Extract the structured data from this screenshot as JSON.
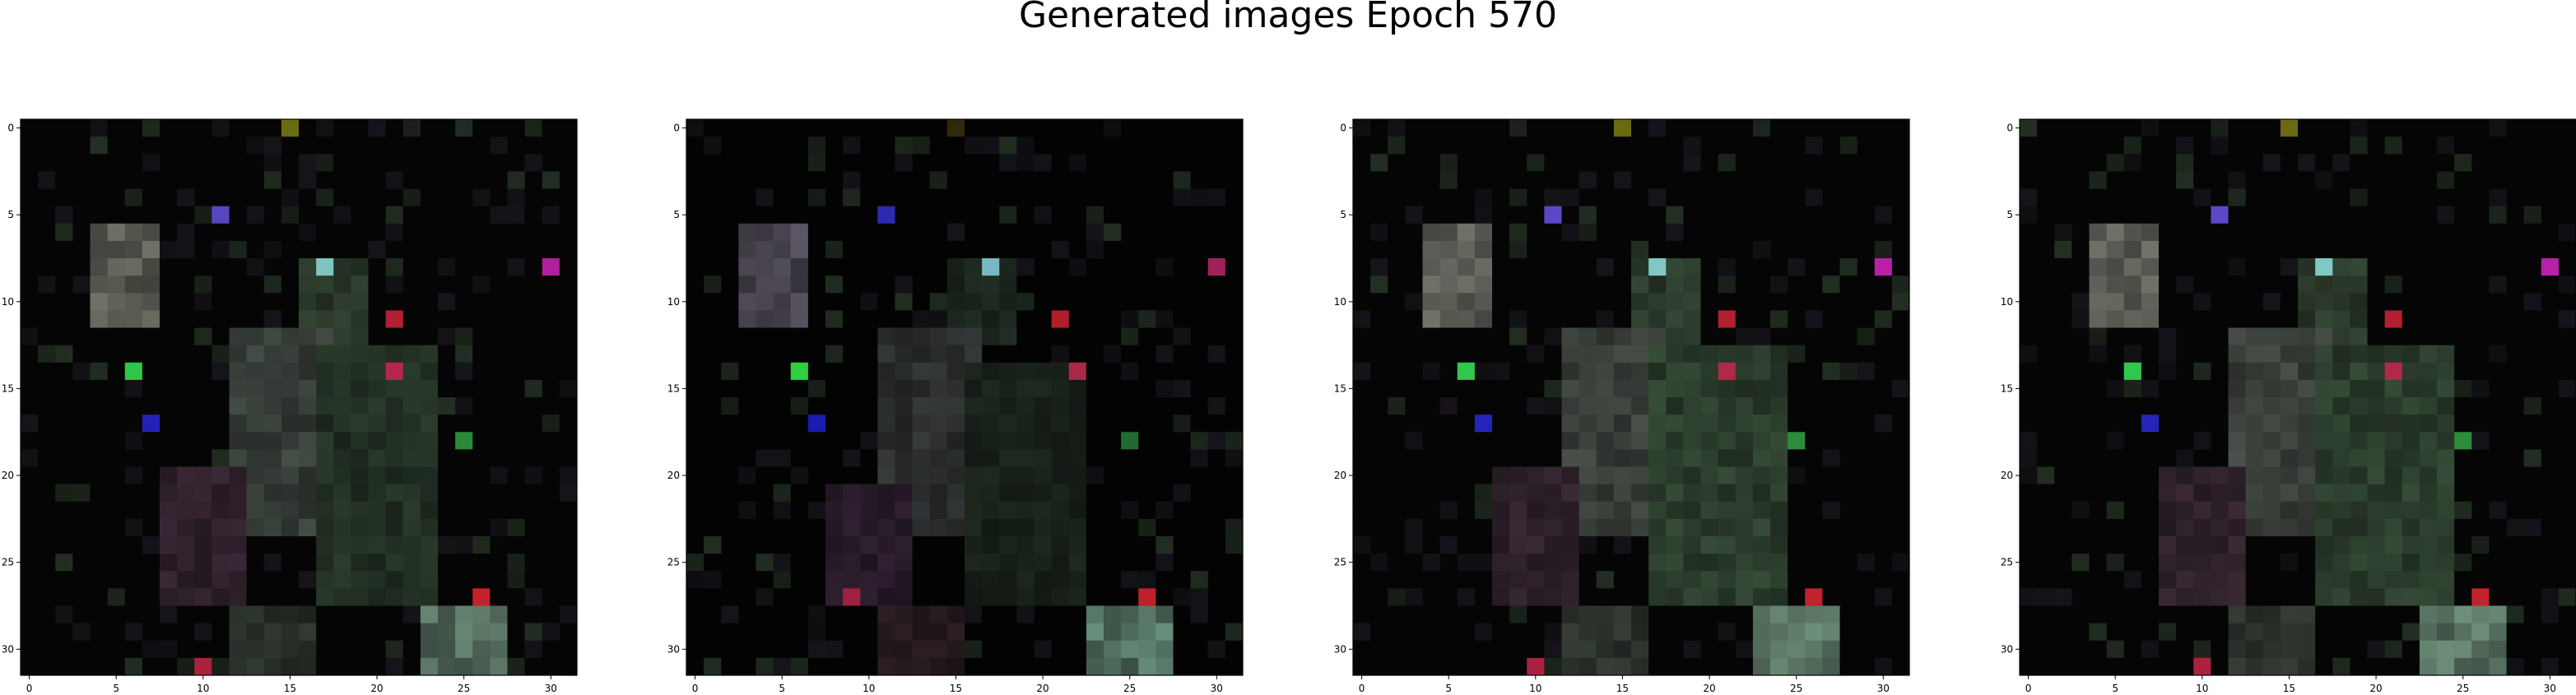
{
  "figure": {
    "title": "Generated images Epoch 570",
    "background_color": "#ffffff",
    "frame_color": "#000000",
    "tick_color": "#000000"
  },
  "chart_data": [
    {
      "type": "heatmap",
      "title": "",
      "xlabel": "",
      "ylabel": "",
      "xlim": [
        -0.5,
        31.5
      ],
      "ylim": [
        31.5,
        -0.5
      ],
      "grid": false,
      "legend": "none",
      "xticks": [
        "0",
        "5",
        "10",
        "15",
        "20",
        "25",
        "30"
      ],
      "yticks": [
        "0",
        "5",
        "10",
        "15",
        "20",
        "25",
        "30"
      ],
      "background": "#050505",
      "regions": [
        {
          "x": [
            4,
            7
          ],
          "y": [
            6,
            11
          ],
          "color": "#8a8f80",
          "alpha": 0.8
        },
        {
          "x": [
            16,
            19
          ],
          "y": [
            8,
            12
          ],
          "color": "#4e6a4e",
          "alpha": 0.65
        },
        {
          "x": [
            12,
            17
          ],
          "y": [
            12,
            23
          ],
          "color": "#5f6c62",
          "alpha": 0.7
        },
        {
          "x": [
            17,
            23
          ],
          "y": [
            13,
            27
          ],
          "color": "#3f5a42",
          "alpha": 0.65
        },
        {
          "x": [
            8,
            12
          ],
          "y": [
            20,
            27
          ],
          "color": "#5c3f55",
          "alpha": 0.6
        },
        {
          "x": [
            12,
            16
          ],
          "y": [
            28,
            31
          ],
          "color": "#4f5e4f",
          "alpha": 0.6
        },
        {
          "x": [
            23,
            27
          ],
          "y": [
            28,
            31
          ],
          "color": "#7da08a",
          "alpha": 0.85
        }
      ],
      "highlights": [
        {
          "x": 15,
          "y": 0,
          "color": "#6b6b14"
        },
        {
          "x": 11,
          "y": 5,
          "color": "#5547c2"
        },
        {
          "x": 30,
          "y": 8,
          "color": "#b0209a"
        },
        {
          "x": 17,
          "y": 8,
          "color": "#7fc4c0"
        },
        {
          "x": 21,
          "y": 11,
          "color": "#b21f32"
        },
        {
          "x": 6,
          "y": 14,
          "color": "#2fc74b"
        },
        {
          "x": 7,
          "y": 17,
          "color": "#2222b8"
        },
        {
          "x": 21,
          "y": 14,
          "color": "#b3284a"
        },
        {
          "x": 25,
          "y": 18,
          "color": "#2b8a3a"
        },
        {
          "x": 26,
          "y": 27,
          "color": "#c1222c"
        },
        {
          "x": 10,
          "y": 31,
          "color": "#aa2240"
        }
      ]
    },
    {
      "type": "heatmap",
      "title": "",
      "xlabel": "",
      "ylabel": "",
      "xlim": [
        -0.5,
        31.5
      ],
      "ylim": [
        31.5,
        -0.5
      ],
      "grid": false,
      "legend": "none",
      "xticks": [
        "0",
        "5",
        "10",
        "15",
        "20",
        "25",
        "30"
      ],
      "yticks": [
        "0",
        "5",
        "10",
        "15",
        "20",
        "25",
        "30"
      ],
      "background": "#030303",
      "regions": [
        {
          "x": [
            3,
            6
          ],
          "y": [
            6,
            11
          ],
          "color": "#7d7488",
          "alpha": 0.75
        },
        {
          "x": [
            15,
            18
          ],
          "y": [
            8,
            12
          ],
          "color": "#354a3a",
          "alpha": 0.6
        },
        {
          "x": [
            11,
            16
          ],
          "y": [
            12,
            23
          ],
          "color": "#5a5f5f",
          "alpha": 0.6
        },
        {
          "x": [
            16,
            22
          ],
          "y": [
            14,
            27
          ],
          "color": "#334736",
          "alpha": 0.55
        },
        {
          "x": [
            8,
            12
          ],
          "y": [
            21,
            27
          ],
          "color": "#56395a",
          "alpha": 0.55
        },
        {
          "x": [
            11,
            15
          ],
          "y": [
            28,
            31
          ],
          "color": "#523846",
          "alpha": 0.55
        },
        {
          "x": [
            23,
            27
          ],
          "y": [
            28,
            31
          ],
          "color": "#79a690",
          "alpha": 0.85
        }
      ],
      "highlights": [
        {
          "x": 15,
          "y": 0,
          "color": "#2f2a0a"
        },
        {
          "x": 11,
          "y": 5,
          "color": "#2c2ab0"
        },
        {
          "x": 30,
          "y": 8,
          "color": "#a0205c"
        },
        {
          "x": 17,
          "y": 8,
          "color": "#78b8c4"
        },
        {
          "x": 21,
          "y": 11,
          "color": "#b01e2a"
        },
        {
          "x": 6,
          "y": 14,
          "color": "#2fd040"
        },
        {
          "x": 7,
          "y": 17,
          "color": "#1c1cb0"
        },
        {
          "x": 22,
          "y": 14,
          "color": "#a82a48"
        },
        {
          "x": 25,
          "y": 18,
          "color": "#226a30"
        },
        {
          "x": 26,
          "y": 27,
          "color": "#c0202a"
        },
        {
          "x": 9,
          "y": 27,
          "color": "#a02040"
        }
      ]
    },
    {
      "type": "heatmap",
      "title": "",
      "xlabel": "",
      "ylabel": "",
      "xlim": [
        -0.5,
        31.5
      ],
      "ylim": [
        31.5,
        -0.5
      ],
      "grid": false,
      "legend": "none",
      "xticks": [
        "0",
        "5",
        "10",
        "15",
        "20",
        "25",
        "30"
      ],
      "yticks": [
        "0",
        "5",
        "10",
        "15",
        "20",
        "25",
        "30"
      ],
      "background": "#050505",
      "regions": [
        {
          "x": [
            4,
            7
          ],
          "y": [
            6,
            11
          ],
          "color": "#8b8d82",
          "alpha": 0.8
        },
        {
          "x": [
            16,
            19
          ],
          "y": [
            8,
            12
          ],
          "color": "#4d6b4f",
          "alpha": 0.65
        },
        {
          "x": [
            12,
            17
          ],
          "y": [
            12,
            23
          ],
          "color": "#636e64",
          "alpha": 0.72
        },
        {
          "x": [
            17,
            24
          ],
          "y": [
            13,
            27
          ],
          "color": "#4a6a4c",
          "alpha": 0.7
        },
        {
          "x": [
            8,
            12
          ],
          "y": [
            20,
            27
          ],
          "color": "#5e4256",
          "alpha": 0.6
        },
        {
          "x": [
            12,
            16
          ],
          "y": [
            28,
            31
          ],
          "color": "#556355",
          "alpha": 0.6
        },
        {
          "x": [
            23,
            27
          ],
          "y": [
            28,
            31
          ],
          "color": "#7fa68d",
          "alpha": 0.85
        }
      ],
      "highlights": [
        {
          "x": 15,
          "y": 0,
          "color": "#6a6a14"
        },
        {
          "x": 11,
          "y": 5,
          "color": "#5a48c8"
        },
        {
          "x": 30,
          "y": 8,
          "color": "#b820a8"
        },
        {
          "x": 17,
          "y": 8,
          "color": "#80c8c4"
        },
        {
          "x": 21,
          "y": 11,
          "color": "#b21f30"
        },
        {
          "x": 6,
          "y": 14,
          "color": "#30c84c"
        },
        {
          "x": 7,
          "y": 17,
          "color": "#2424b8"
        },
        {
          "x": 21,
          "y": 14,
          "color": "#b0284a"
        },
        {
          "x": 25,
          "y": 18,
          "color": "#2c8c3c"
        },
        {
          "x": 26,
          "y": 27,
          "color": "#c2222c"
        },
        {
          "x": 10,
          "y": 31,
          "color": "#aa2240"
        }
      ]
    },
    {
      "type": "heatmap",
      "title": "",
      "xlabel": "",
      "ylabel": "",
      "xlim": [
        -0.5,
        31.5
      ],
      "ylim": [
        31.5,
        -0.5
      ],
      "grid": false,
      "legend": "none",
      "xticks": [
        "0",
        "5",
        "10",
        "15",
        "20",
        "25",
        "30"
      ],
      "yticks": [
        "0",
        "5",
        "10",
        "15",
        "20",
        "25",
        "30"
      ],
      "background": "#050505",
      "regions": [
        {
          "x": [
            4,
            7
          ],
          "y": [
            6,
            11
          ],
          "color": "#8c8f84",
          "alpha": 0.8
        },
        {
          "x": [
            16,
            19
          ],
          "y": [
            8,
            12
          ],
          "color": "#4f6b4f",
          "alpha": 0.65
        },
        {
          "x": [
            12,
            17
          ],
          "y": [
            12,
            23
          ],
          "color": "#656f65",
          "alpha": 0.72
        },
        {
          "x": [
            17,
            24
          ],
          "y": [
            13,
            27
          ],
          "color": "#4b6b4d",
          "alpha": 0.7
        },
        {
          "x": [
            8,
            12
          ],
          "y": [
            20,
            27
          ],
          "color": "#5f4357",
          "alpha": 0.6
        },
        {
          "x": [
            12,
            16
          ],
          "y": [
            28,
            31
          ],
          "color": "#566456",
          "alpha": 0.6
        },
        {
          "x": [
            23,
            27
          ],
          "y": [
            28,
            31
          ],
          "color": "#80a78e",
          "alpha": 0.85
        }
      ],
      "highlights": [
        {
          "x": 15,
          "y": 0,
          "color": "#6a6a14"
        },
        {
          "x": 11,
          "y": 5,
          "color": "#5a48c8"
        },
        {
          "x": 30,
          "y": 8,
          "color": "#b820a8"
        },
        {
          "x": 17,
          "y": 8,
          "color": "#80c8c4"
        },
        {
          "x": 21,
          "y": 11,
          "color": "#b21f30"
        },
        {
          "x": 6,
          "y": 14,
          "color": "#30c84c"
        },
        {
          "x": 7,
          "y": 17,
          "color": "#2424b8"
        },
        {
          "x": 21,
          "y": 14,
          "color": "#b0284a"
        },
        {
          "x": 25,
          "y": 18,
          "color": "#2c8c3c"
        },
        {
          "x": 26,
          "y": 27,
          "color": "#c2222c"
        },
        {
          "x": 10,
          "y": 31,
          "color": "#aa2240"
        }
      ]
    }
  ]
}
